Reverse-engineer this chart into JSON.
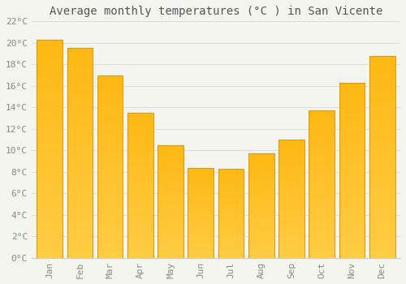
{
  "title": "Average monthly temperatures (°C ) in San Vicente",
  "months": [
    "Jan",
    "Feb",
    "Mar",
    "Apr",
    "May",
    "Jun",
    "Jul",
    "Aug",
    "Sep",
    "Oct",
    "Nov",
    "Dec"
  ],
  "values": [
    20.3,
    19.5,
    17.0,
    13.5,
    10.5,
    8.4,
    8.3,
    9.7,
    11.0,
    13.7,
    16.3,
    18.8
  ],
  "bar_color_top": "#FDB813",
  "bar_color_bottom": "#FFCC44",
  "bar_edge_color": "#E89400",
  "ylim": [
    0,
    22
  ],
  "ytick_step": 2,
  "background_color": "#F5F5F0",
  "grid_color": "#DDDDDD",
  "title_fontsize": 10,
  "tick_fontsize": 8,
  "font_color": "#888888",
  "title_color": "#555555"
}
